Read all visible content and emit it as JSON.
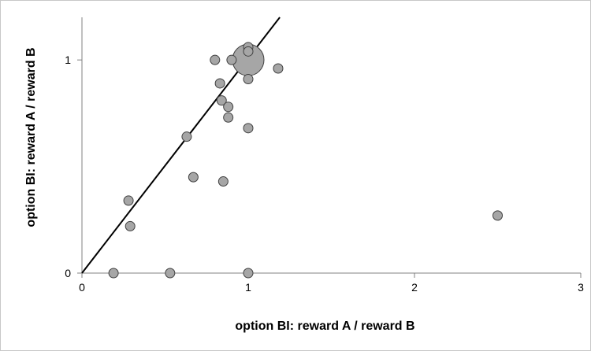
{
  "chart_data": {
    "type": "scatter",
    "xlabel": "option BI: reward A / reward B",
    "ylabel": "option BI: reward A / reward B",
    "xlim": [
      0,
      3
    ],
    "ylim": [
      0,
      1.2
    ],
    "x_ticks": [
      "0",
      "1",
      "2",
      "3"
    ],
    "y_ticks": [
      "0",
      "1"
    ],
    "grid": false,
    "legend": "none",
    "point_color": "#a6a6a6",
    "point_edge_color": "#404040",
    "line_color": "#000000",
    "reference_line": {
      "x": [
        0,
        1.19
      ],
      "y": [
        0,
        1.2
      ]
    },
    "points": [
      {
        "x": 1.0,
        "y": 1.0,
        "size": "large"
      },
      {
        "x": 1.0,
        "y": 1.06
      },
      {
        "x": 1.0,
        "y": 1.04
      },
      {
        "x": 0.8,
        "y": 1.0
      },
      {
        "x": 0.9,
        "y": 1.0
      },
      {
        "x": 1.18,
        "y": 0.96
      },
      {
        "x": 1.0,
        "y": 0.91
      },
      {
        "x": 0.83,
        "y": 0.89
      },
      {
        "x": 0.84,
        "y": 0.81
      },
      {
        "x": 0.88,
        "y": 0.78
      },
      {
        "x": 0.88,
        "y": 0.73
      },
      {
        "x": 1.0,
        "y": 0.68
      },
      {
        "x": 0.63,
        "y": 0.64
      },
      {
        "x": 0.67,
        "y": 0.45
      },
      {
        "x": 0.85,
        "y": 0.43
      },
      {
        "x": 0.28,
        "y": 0.34
      },
      {
        "x": 0.29,
        "y": 0.22
      },
      {
        "x": 2.5,
        "y": 0.27
      },
      {
        "x": 0.19,
        "y": 0.0
      },
      {
        "x": 0.53,
        "y": 0.0
      },
      {
        "x": 1.0,
        "y": 0.0
      }
    ]
  }
}
